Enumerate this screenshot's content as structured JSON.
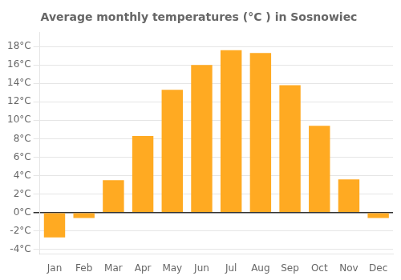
{
  "chart_data": {
    "type": "bar",
    "title": "Average monthly temperatures (°C ) in Sosnowiec",
    "categories": [
      "Jan",
      "Feb",
      "Mar",
      "Apr",
      "May",
      "Jun",
      "Jul",
      "Aug",
      "Sep",
      "Oct",
      "Nov",
      "Dec"
    ],
    "values": [
      -2.7,
      -0.6,
      3.5,
      8.3,
      13.3,
      16.0,
      17.6,
      17.3,
      13.8,
      9.4,
      3.6,
      -0.6
    ],
    "color": "#FFAA22",
    "ylim": [
      -4.5,
      19.5
    ],
    "yticks": [
      {
        "value": -4,
        "label": "-4°C"
      },
      {
        "value": -2,
        "label": "-2°C"
      },
      {
        "value": 0,
        "label": "0°C"
      },
      {
        "value": 2,
        "label": "2°C"
      },
      {
        "value": 4,
        "label": "4°C"
      },
      {
        "value": 6,
        "label": "6°C"
      },
      {
        "value": 8,
        "label": "8°C"
      },
      {
        "value": 10,
        "label": "10°C"
      },
      {
        "value": 12,
        "label": "12°C"
      },
      {
        "value": 14,
        "label": "14°C"
      },
      {
        "value": 16,
        "label": "16°C"
      },
      {
        "value": 18,
        "label": "18°C"
      }
    ],
    "grid": true
  }
}
